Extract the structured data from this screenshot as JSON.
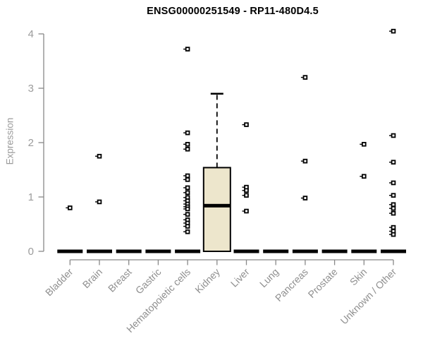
{
  "chart_data": {
    "type": "boxplot",
    "title": "ENSG00000251549 - RP11-480D4.5",
    "xlabel": "",
    "ylabel": "Expression",
    "ylim": [
      0,
      4
    ],
    "yticks": [
      0,
      1,
      2,
      3,
      4
    ],
    "grid": false,
    "legend": false,
    "marker_style": "open-square",
    "categories": [
      "Bladder",
      "Brain",
      "Breast",
      "Gastric",
      "Hematopoietic cells",
      "Kidney",
      "Liver",
      "Lung",
      "Pancreas",
      "Prostate",
      "Skin",
      "Unknown / Other"
    ],
    "series": [
      {
        "category": "Bladder",
        "box": {
          "whisker_low": 0,
          "q1": 0,
          "median": 0,
          "q3": 0,
          "whisker_high": 0
        },
        "points": [
          0.8
        ]
      },
      {
        "category": "Brain",
        "box": {
          "whisker_low": 0,
          "q1": 0,
          "median": 0,
          "q3": 0,
          "whisker_high": 0
        },
        "points": [
          1.75,
          0.91
        ]
      },
      {
        "category": "Breast",
        "box": {
          "whisker_low": 0,
          "q1": 0,
          "median": 0,
          "q3": 0,
          "whisker_high": 0
        },
        "points": []
      },
      {
        "category": "Gastric",
        "box": {
          "whisker_low": 0,
          "q1": 0,
          "median": 0,
          "q3": 0,
          "whisker_high": 0
        },
        "points": []
      },
      {
        "category": "Hematopoietic cells",
        "box": {
          "whisker_low": 0,
          "q1": 0,
          "median": 0,
          "q3": 0,
          "whisker_high": 0
        },
        "points": [
          3.72,
          2.18,
          1.97,
          1.88,
          1.39,
          1.32,
          1.17,
          1.08,
          0.99,
          0.93,
          0.87,
          0.82,
          0.78,
          0.68,
          0.58,
          0.52,
          0.46,
          0.36
        ]
      },
      {
        "category": "Kidney",
        "box": {
          "whisker_low": 0,
          "q1": 0,
          "median": 0.84,
          "q3": 1.54,
          "whisker_high": 2.9
        },
        "points": []
      },
      {
        "category": "Liver",
        "box": {
          "whisker_low": 0,
          "q1": 0,
          "median": 0,
          "q3": 0,
          "whisker_high": 0
        },
        "points": [
          2.33,
          1.18,
          1.12,
          1.03,
          0.74
        ]
      },
      {
        "category": "Lung",
        "box": {
          "whisker_low": 0,
          "q1": 0,
          "median": 0,
          "q3": 0,
          "whisker_high": 0
        },
        "points": []
      },
      {
        "category": "Pancreas",
        "box": {
          "whisker_low": 0,
          "q1": 0,
          "median": 0,
          "q3": 0,
          "whisker_high": 0
        },
        "points": [
          3.2,
          1.66,
          0.98
        ]
      },
      {
        "category": "Prostate",
        "box": {
          "whisker_low": 0,
          "q1": 0,
          "median": 0,
          "q3": 0,
          "whisker_high": 0
        },
        "points": []
      },
      {
        "category": "Skin",
        "box": {
          "whisker_low": 0,
          "q1": 0,
          "median": 0,
          "q3": 0,
          "whisker_high": 0
        },
        "points": [
          1.97,
          1.38
        ]
      },
      {
        "category": "Unknown / Other",
        "box": {
          "whisker_low": 0,
          "q1": 0,
          "median": 0,
          "q3": 0,
          "whisker_high": 0
        },
        "points": [
          4.05,
          2.13,
          1.64,
          1.26,
          1.03,
          0.86,
          0.79,
          0.7,
          0.44,
          0.37,
          0.31
        ]
      }
    ],
    "colors": {
      "box_fill": "#EDE6CC",
      "box_stroke": "#000000",
      "axis": "#888888",
      "tick_label": "#9b9b9b",
      "category_label": "#8f8f8f",
      "title": "#000000",
      "marker": "#000000",
      "background": "#ffffff"
    }
  }
}
